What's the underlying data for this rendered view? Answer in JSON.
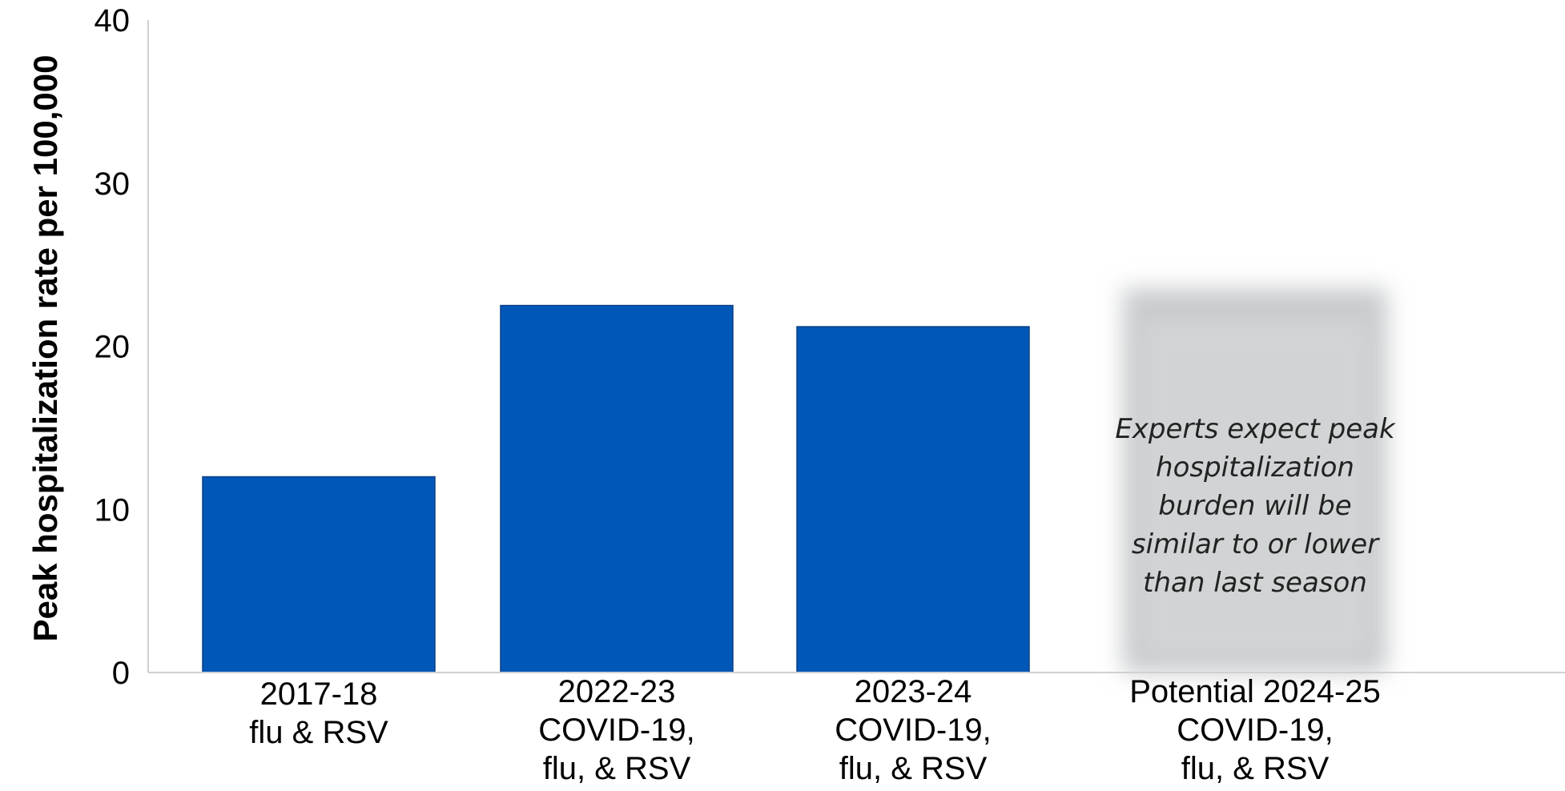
{
  "chart_data": {
    "type": "bar",
    "ylabel": "Peak hospitalization rate per 100,000",
    "ylim": [
      0,
      40
    ],
    "yticks": [
      0,
      10,
      20,
      30,
      40
    ],
    "grid": false,
    "categories": [
      [
        "2017-18",
        "flu & RSV"
      ],
      [
        "2022-23",
        "COVID-19,",
        "flu, & RSV"
      ],
      [
        "2023-24",
        "COVID-19,",
        "flu, & RSV"
      ],
      [
        "Potential 2024-25",
        "COVID-19,",
        "flu, & RSV"
      ]
    ],
    "values": [
      12.0,
      22.5,
      21.2,
      null
    ],
    "bar_color": "#0057b8",
    "annotation": {
      "category_index": 3,
      "lines": [
        "Experts expect peak",
        "hospitalization",
        "burden will be",
        "similar to or lower",
        "than last season"
      ],
      "background_color": "#c8cbcd"
    }
  }
}
